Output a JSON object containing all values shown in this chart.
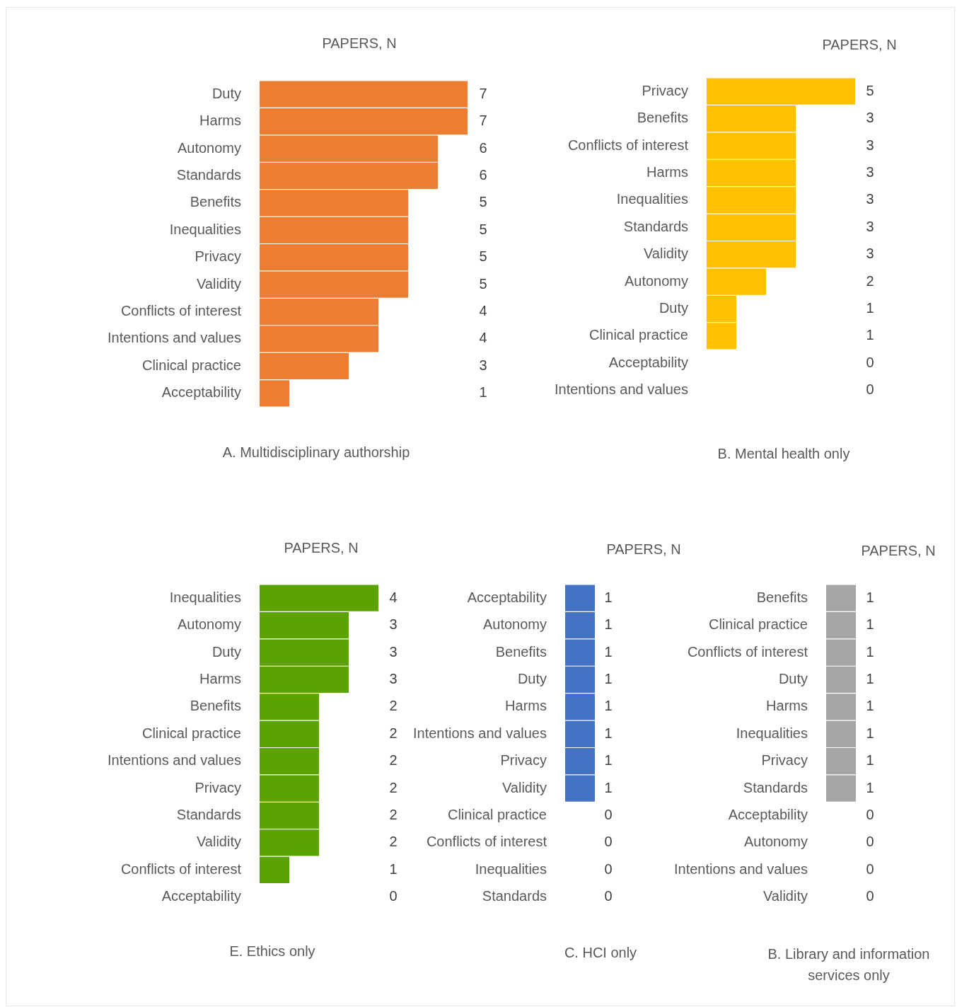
{
  "chart_data": [
    {
      "type": "bar",
      "orientation": "horizontal",
      "title": "A. Multidisciplinary authorship",
      "xlabel": "PAPERS, N",
      "categories": [
        "Duty",
        "Harms",
        "Autonomy",
        "Standards",
        "Benefits",
        "Inequalities",
        "Privacy",
        "Validity",
        "Conflicts of interest",
        "Intentions and values",
        "Clinical practice",
        "Acceptability"
      ],
      "values": [
        7,
        7,
        6,
        6,
        5,
        5,
        5,
        5,
        4,
        4,
        3,
        1
      ],
      "color": "#ed7d31",
      "data_labels": true,
      "tick_labels": "y"
    },
    {
      "type": "bar",
      "orientation": "horizontal",
      "title": "B. Mental health only",
      "xlabel": "PAPERS, N",
      "categories": [
        "Privacy",
        "Benefits",
        "Conflicts of interest",
        "Harms",
        "Inequalities",
        "Standards",
        "Validity",
        "Autonomy",
        "Duty",
        "Clinical practice",
        "Acceptability",
        "Intentions and values"
      ],
      "values": [
        5,
        3,
        3,
        3,
        3,
        3,
        3,
        2,
        1,
        1,
        0,
        0
      ],
      "color": "#ffc000",
      "data_labels": true,
      "tick_labels": "y"
    },
    {
      "type": "bar",
      "orientation": "horizontal",
      "title": "E. Ethics only",
      "xlabel": "PAPERS, N",
      "categories": [
        "Inequalities",
        "Autonomy",
        "Duty",
        "Harms",
        "Benefits",
        "Clinical practice",
        "Intentions and values",
        "Privacy",
        "Standards",
        "Validity",
        "Conflicts of interest",
        "Acceptability"
      ],
      "values": [
        4,
        3,
        3,
        3,
        2,
        2,
        2,
        2,
        2,
        2,
        1,
        0
      ],
      "color": "#5ba300",
      "data_labels": true,
      "tick_labels": "y"
    },
    {
      "type": "bar",
      "orientation": "horizontal",
      "title": "C. HCI only",
      "xlabel": "PAPERS, N",
      "categories": [
        "Acceptability",
        "Autonomy",
        "Benefits",
        "Duty",
        "Harms",
        "Intentions and values",
        "Privacy",
        "Validity",
        "Clinical practice",
        "Conflicts of interest",
        "Inequalities",
        "Standards"
      ],
      "values": [
        1,
        1,
        1,
        1,
        1,
        1,
        1,
        1,
        0,
        0,
        0,
        0
      ],
      "color": "#4472c4",
      "data_labels": true,
      "tick_labels": "y"
    },
    {
      "type": "bar",
      "orientation": "horizontal",
      "title": "B. Library and information services only",
      "xlabel": "PAPERS, N",
      "categories": [
        "Benefits",
        "Clinical practice",
        "Conflicts of interest",
        "Duty",
        "Harms",
        "Inequalities",
        "Privacy",
        "Standards",
        "Acceptability",
        "Autonomy",
        "Intentions and values",
        "Validity"
      ],
      "values": [
        1,
        1,
        1,
        1,
        1,
        1,
        1,
        1,
        0,
        0,
        0,
        0
      ],
      "color": "#a5a5a5",
      "data_labels": true,
      "tick_labels": "y"
    }
  ]
}
